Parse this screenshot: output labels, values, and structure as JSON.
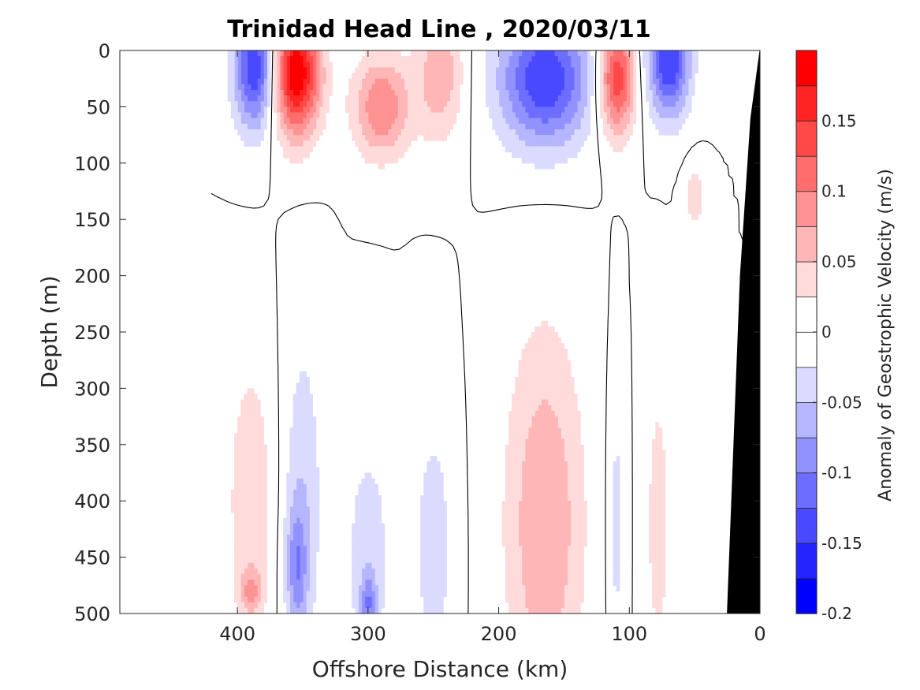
{
  "chart_data": {
    "type": "heatmap",
    "title": "Trinidad Head Line , 2020/03/11",
    "xlabel": "Offshore Distance (km)",
    "ylabel": "Depth (m)",
    "colorbar_label": "Anomaly of Geostrophic Velocity (m/s)",
    "xlim": [
      490,
      0
    ],
    "ylim": [
      0,
      500
    ],
    "x_reversed": true,
    "y_reversed": true,
    "xticks": [
      {
        "value": 400,
        "label": "400"
      },
      {
        "value": 300,
        "label": "300"
      },
      {
        "value": 200,
        "label": "200"
      },
      {
        "value": 100,
        "label": "100"
      },
      {
        "value": 0,
        "label": "0"
      }
    ],
    "yticks": [
      {
        "value": 0,
        "label": "0"
      },
      {
        "value": 50,
        "label": "50"
      },
      {
        "value": 100,
        "label": "100"
      },
      {
        "value": 150,
        "label": "150"
      },
      {
        "value": 200,
        "label": "200"
      },
      {
        "value": 250,
        "label": "250"
      },
      {
        "value": 300,
        "label": "300"
      },
      {
        "value": 350,
        "label": "350"
      },
      {
        "value": 400,
        "label": "400"
      },
      {
        "value": 450,
        "label": "450"
      },
      {
        "value": 500,
        "label": "500"
      }
    ],
    "colorbar": {
      "min": -0.2,
      "max": 0.2,
      "levels": [
        -0.2,
        -0.175,
        -0.15,
        -0.125,
        -0.1,
        -0.075,
        -0.05,
        -0.025,
        0,
        0.025,
        0.05,
        0.075,
        0.1,
        0.125,
        0.15,
        0.175,
        0.2
      ],
      "ticks": [
        {
          "value": -0.2,
          "label": "-0.2"
        },
        {
          "value": -0.15,
          "label": "-0.15"
        },
        {
          "value": -0.1,
          "label": "-0.1"
        },
        {
          "value": -0.05,
          "label": "-0.05"
        },
        {
          "value": 0,
          "label": "0"
        },
        {
          "value": 0.05,
          "label": "0.05"
        },
        {
          "value": 0.1,
          "label": "0.1"
        },
        {
          "value": 0.15,
          "label": "0.15"
        }
      ]
    },
    "data_extent_x": [
      0,
      420
    ],
    "bathymetry": [
      [
        0,
        0
      ],
      [
        7,
        60
      ],
      [
        15,
        200
      ],
      [
        25,
        500
      ],
      [
        0,
        500
      ]
    ],
    "features": [
      {
        "x": 387,
        "xw": 16,
        "zc": 15,
        "zh": 55,
        "v": -0.15
      },
      {
        "x": 355,
        "xw": 18,
        "zc": 20,
        "zh": 55,
        "v": 0.2
      },
      {
        "x": 290,
        "xw": 22,
        "zc": 50,
        "zh": 45,
        "v": 0.1
      },
      {
        "x": 245,
        "xw": 18,
        "zc": 20,
        "zh": 60,
        "v": 0.07
      },
      {
        "x": 165,
        "xw": 35,
        "zc": 25,
        "zh": 60,
        "v": -0.15
      },
      {
        "x": 110,
        "xw": 14,
        "zc": 25,
        "zh": 50,
        "v": 0.15
      },
      {
        "x": 70,
        "xw": 16,
        "zc": 10,
        "zh": 50,
        "v": -0.15
      },
      {
        "x": 50,
        "xw": 8,
        "zc": 130,
        "zh": 30,
        "v": 0.04
      },
      {
        "x": 390,
        "xw": 18,
        "zc": 400,
        "zh": 130,
        "v": 0.045
      },
      {
        "x": 390,
        "xw": 8,
        "zc": 480,
        "zh": 20,
        "v": 0.06
      },
      {
        "x": 350,
        "xw": 15,
        "zc": 400,
        "zh": 150,
        "v": -0.045
      },
      {
        "x": 355,
        "xw": 8,
        "zc": 460,
        "zh": 55,
        "v": -0.07
      },
      {
        "x": 300,
        "xw": 18,
        "zc": 450,
        "zh": 110,
        "v": -0.04
      },
      {
        "x": 300,
        "xw": 6,
        "zc": 490,
        "zh": 25,
        "v": -0.07
      },
      {
        "x": 250,
        "xw": 15,
        "zc": 440,
        "zh": 120,
        "v": -0.04
      },
      {
        "x": 165,
        "xw": 30,
        "zc": 420,
        "zh": 170,
        "v": 0.075
      },
      {
        "x": 110,
        "xw": 6,
        "zc": 420,
        "zh": 130,
        "v": -0.035
      },
      {
        "x": 78,
        "xw": 9,
        "zc": 420,
        "zh": 130,
        "v": 0.04
      }
    ]
  }
}
